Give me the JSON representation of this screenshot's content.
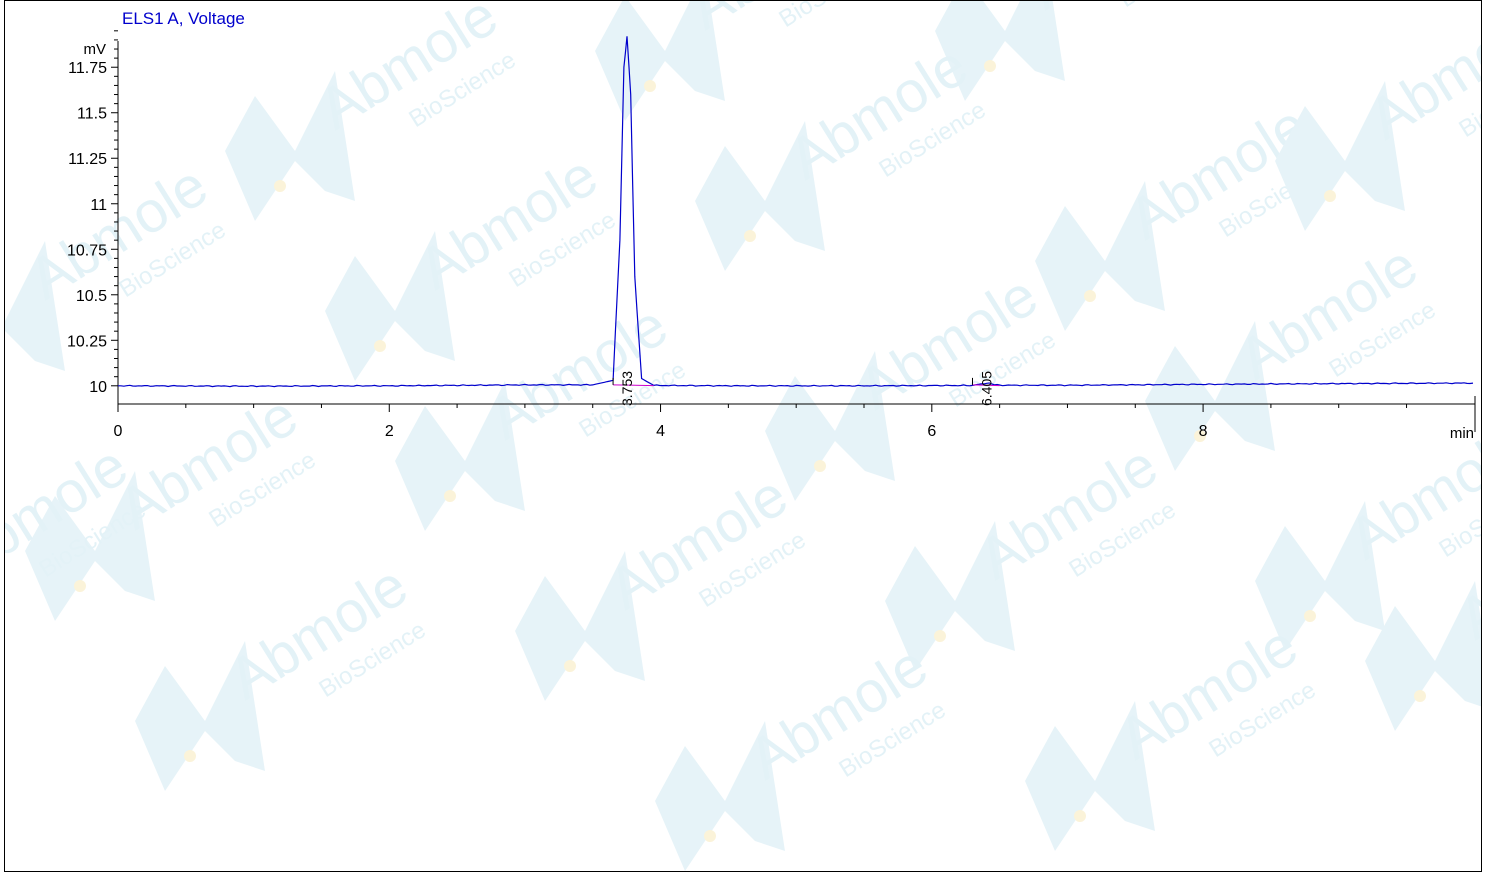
{
  "chart_data": {
    "type": "line",
    "title": "ELS1 A, Voltage",
    "xlabel": "min",
    "ylabel": "mV",
    "xlim": [
      0,
      9.99
    ],
    "ylim": [
      9.9,
      11.96
    ],
    "x_ticks": [
      0,
      2,
      4,
      6,
      8
    ],
    "x_tick_labels": [
      "0",
      "2",
      "4",
      "6",
      "8"
    ],
    "y_ticks": [
      10,
      10.25,
      10.5,
      10.75,
      11,
      11.25,
      11.5,
      11.75
    ],
    "y_tick_labels": [
      "10",
      "10.25",
      "10.5",
      "10.75",
      "11",
      "11.25",
      "11.5",
      "11.75"
    ],
    "grid": false,
    "series": [
      {
        "color": "#0000cc",
        "x": [
          0,
          1,
          2,
          3,
          3.5,
          3.65,
          3.7,
          3.73,
          3.753,
          3.78,
          3.81,
          3.86,
          3.95,
          4.5,
          5.5,
          6.3,
          6.405,
          6.5,
          7,
          8,
          9,
          9.99
        ],
        "y": [
          10.0,
          9.998,
          10.0,
          10.005,
          10.005,
          10.03,
          10.8,
          11.75,
          11.92,
          11.6,
          10.6,
          10.04,
          10.002,
          10.0,
          10.0,
          10.002,
          10.015,
          10.003,
          10.003,
          10.008,
          10.012,
          10.015
        ]
      }
    ],
    "peak_labels": [
      {
        "x": 3.753,
        "label": "3.753"
      },
      {
        "x": 6.405,
        "label": "6.405"
      }
    ],
    "annotation_colors": {
      "baseline": "#cc00cc",
      "peak_label": "#000000"
    }
  },
  "watermark": {
    "brand": "Abmole",
    "sub": "BioScience",
    "colors": {
      "icon_blue": "#e6f3f8",
      "icon_dot": "#fbf3d9"
    }
  }
}
